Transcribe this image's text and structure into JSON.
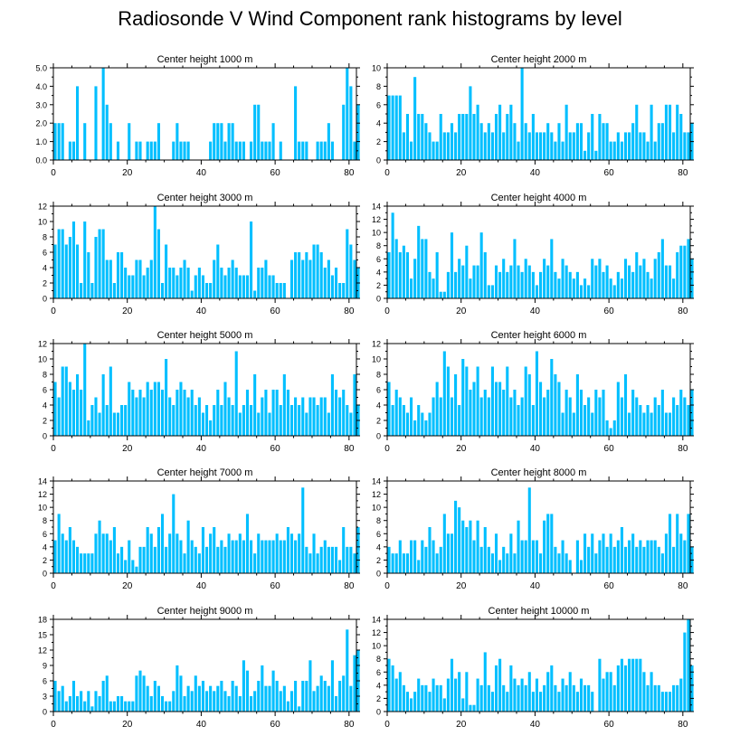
{
  "page_title": "Radiosonde V Wind Component rank histograms by level",
  "colors": {
    "bar": "#00bfff",
    "axis": "#000000",
    "background": "#ffffff"
  },
  "chart_data": [
    {
      "type": "bar",
      "title": "Center height 1000 m",
      "xlim": [
        0,
        82
      ],
      "xticks": [
        0,
        20,
        40,
        60,
        80
      ],
      "ylim": [
        0,
        5
      ],
      "yticks": [
        0,
        1,
        2,
        3,
        4,
        5
      ],
      "ytick_labels": [
        "0.0",
        "1.0",
        "2.0",
        "3.0",
        "4.0",
        "5.0"
      ],
      "values": [
        2,
        2,
        2,
        0,
        1,
        1,
        4,
        0,
        2,
        0,
        0,
        4,
        0,
        5,
        3,
        2,
        0,
        1,
        0,
        0,
        2,
        0,
        1,
        1,
        0,
        1,
        1,
        1,
        2,
        0,
        0,
        0,
        1,
        2,
        1,
        1,
        1,
        0,
        0,
        0,
        0,
        0,
        1,
        2,
        2,
        2,
        1,
        2,
        2,
        1,
        1,
        1,
        0,
        1,
        3,
        3,
        1,
        1,
        1,
        2,
        0,
        1,
        0,
        0,
        0,
        4,
        1,
        1,
        1,
        0,
        0,
        1,
        1,
        1,
        2,
        1,
        0,
        0,
        3,
        5,
        4,
        1,
        3
      ]
    },
    {
      "type": "bar",
      "title": "Center height 2000 m",
      "xlim": [
        0,
        82
      ],
      "xticks": [
        0,
        20,
        40,
        60,
        80
      ],
      "ylim": [
        0,
        10
      ],
      "yticks": [
        0,
        2,
        4,
        6,
        8,
        10
      ],
      "ytick_labels": [
        "0",
        "2",
        "4",
        "6",
        "8",
        "10"
      ],
      "values": [
        7,
        7,
        7,
        7,
        3,
        5,
        2,
        9,
        5,
        5,
        4,
        3,
        2,
        2,
        5,
        3,
        3,
        4,
        3,
        5,
        5,
        5,
        8,
        5,
        6,
        4,
        3,
        4,
        3,
        5,
        6,
        3,
        5,
        6,
        4,
        2,
        10,
        4,
        3,
        5,
        3,
        3,
        3,
        4,
        3,
        2,
        4,
        2,
        6,
        3,
        3,
        4,
        4,
        1,
        3,
        5,
        1,
        5,
        4,
        4,
        2,
        2,
        3,
        2,
        3,
        3,
        4,
        6,
        3,
        3,
        2,
        6,
        2,
        4,
        4,
        6,
        6,
        3,
        6,
        5,
        3,
        3,
        4
      ]
    },
    {
      "type": "bar",
      "title": "Center height 3000 m",
      "xlim": [
        0,
        82
      ],
      "xticks": [
        0,
        20,
        40,
        60,
        80
      ],
      "ylim": [
        0,
        12
      ],
      "yticks": [
        0,
        2,
        4,
        6,
        8,
        10,
        12
      ],
      "ytick_labels": [
        "0",
        "2",
        "4",
        "6",
        "8",
        "10",
        "12"
      ],
      "values": [
        7,
        9,
        9,
        7,
        8,
        10,
        7,
        2,
        10,
        6,
        2,
        8,
        9,
        9,
        5,
        5,
        2,
        6,
        6,
        4,
        3,
        3,
        5,
        5,
        3,
        4,
        5,
        12,
        9,
        2,
        7,
        4,
        4,
        3,
        4,
        5,
        4,
        1,
        3,
        4,
        3,
        2,
        2,
        5,
        7,
        4,
        3,
        4,
        5,
        4,
        3,
        3,
        3,
        10,
        1,
        4,
        4,
        5,
        3,
        3,
        2,
        2,
        2,
        0,
        5,
        6,
        6,
        5,
        6,
        5,
        7,
        7,
        6,
        4,
        5,
        3,
        4,
        2,
        2,
        9,
        7,
        5,
        4
      ]
    },
    {
      "type": "bar",
      "title": "Center height 4000 m",
      "xlim": [
        0,
        82
      ],
      "xticks": [
        0,
        20,
        40,
        60,
        80
      ],
      "ylim": [
        0,
        14
      ],
      "yticks": [
        0,
        2,
        4,
        6,
        8,
        10,
        12,
        14
      ],
      "ytick_labels": [
        "0",
        "2",
        "4",
        "6",
        "8",
        "10",
        "12",
        "14"
      ],
      "values": [
        7,
        13,
        9,
        7,
        8,
        7,
        3,
        6,
        11,
        9,
        9,
        4,
        3,
        7,
        1,
        1,
        4,
        10,
        4,
        6,
        5,
        8,
        3,
        5,
        5,
        10,
        7,
        2,
        2,
        5,
        4,
        6,
        4,
        5,
        9,
        5,
        4,
        6,
        5,
        4,
        2,
        4,
        6,
        5,
        9,
        4,
        3,
        6,
        5,
        4,
        3,
        4,
        2,
        3,
        2,
        6,
        5,
        6,
        4,
        5,
        3,
        2,
        4,
        3,
        6,
        5,
        4,
        7,
        5,
        6,
        4,
        3,
        6,
        7,
        9,
        5,
        5,
        3,
        7,
        8,
        8,
        9,
        6
      ]
    },
    {
      "type": "bar",
      "title": "Center height 5000 m",
      "xlim": [
        0,
        82
      ],
      "xticks": [
        0,
        20,
        40,
        60,
        80
      ],
      "ylim": [
        0,
        12
      ],
      "yticks": [
        0,
        2,
        4,
        6,
        8,
        10,
        12
      ],
      "ytick_labels": [
        "0",
        "2",
        "4",
        "6",
        "8",
        "10",
        "12"
      ],
      "values": [
        7,
        5,
        9,
        9,
        7,
        6,
        8,
        6,
        12,
        2,
        4,
        5,
        3,
        8,
        4,
        9,
        3,
        3,
        4,
        4,
        7,
        6,
        5,
        6,
        5,
        7,
        6,
        7,
        7,
        6,
        10,
        5,
        4,
        6,
        7,
        6,
        5,
        6,
        4,
        5,
        3,
        4,
        2,
        4,
        6,
        4,
        7,
        5,
        4,
        11,
        3,
        4,
        6,
        4,
        8,
        3,
        5,
        6,
        3,
        6,
        6,
        4,
        8,
        6,
        4,
        5,
        4,
        5,
        3,
        5,
        5,
        4,
        5,
        5,
        3,
        8,
        6,
        5,
        6,
        4,
        3,
        8,
        4
      ]
    },
    {
      "type": "bar",
      "title": "Center height 6000 m",
      "xlim": [
        0,
        82
      ],
      "xticks": [
        0,
        20,
        40,
        60,
        80
      ],
      "ylim": [
        0,
        12
      ],
      "yticks": [
        0,
        2,
        4,
        6,
        8,
        10,
        12
      ],
      "ytick_labels": [
        "0",
        "2",
        "4",
        "6",
        "8",
        "10",
        "12"
      ],
      "values": [
        7,
        4,
        6,
        5,
        4,
        3,
        5,
        2,
        4,
        3,
        2,
        3,
        5,
        7,
        5,
        11,
        9,
        5,
        8,
        4,
        10,
        9,
        6,
        7,
        9,
        5,
        6,
        5,
        9,
        7,
        7,
        6,
        9,
        5,
        6,
        4,
        5,
        9,
        8,
        4,
        11,
        7,
        5,
        6,
        10,
        8,
        7,
        3,
        6,
        5,
        3,
        8,
        6,
        4,
        5,
        3,
        6,
        5,
        6,
        2,
        1,
        2,
        7,
        5,
        8,
        3,
        6,
        5,
        4,
        3,
        4,
        3,
        5,
        4,
        6,
        3,
        3,
        5,
        4,
        6,
        5,
        4,
        6
      ]
    },
    {
      "type": "bar",
      "title": "Center height 7000 m",
      "xlim": [
        0,
        82
      ],
      "xticks": [
        0,
        20,
        40,
        60,
        80
      ],
      "ylim": [
        0,
        14
      ],
      "yticks": [
        0,
        2,
        4,
        6,
        8,
        10,
        12,
        14
      ],
      "ytick_labels": [
        "0",
        "2",
        "4",
        "6",
        "8",
        "10",
        "12",
        "14"
      ],
      "values": [
        5,
        9,
        6,
        5,
        7,
        5,
        4,
        3,
        3,
        3,
        3,
        6,
        8,
        6,
        6,
        5,
        7,
        3,
        4,
        2,
        5,
        2,
        1,
        4,
        4,
        7,
        6,
        4,
        7,
        9,
        4,
        6,
        12,
        6,
        5,
        3,
        8,
        5,
        4,
        3,
        7,
        4,
        6,
        7,
        4,
        5,
        4,
        6,
        5,
        5,
        6,
        5,
        9,
        5,
        3,
        6,
        5,
        5,
        5,
        5,
        6,
        5,
        5,
        7,
        6,
        5,
        6,
        13,
        4,
        3,
        6,
        3,
        4,
        5,
        4,
        4,
        4,
        2,
        7,
        4,
        4,
        3,
        7
      ]
    },
    {
      "type": "bar",
      "title": "Center height 8000 m",
      "xlim": [
        0,
        82
      ],
      "xticks": [
        0,
        20,
        40,
        60,
        80
      ],
      "ylim": [
        0,
        14
      ],
      "yticks": [
        0,
        2,
        4,
        6,
        8,
        10,
        12,
        14
      ],
      "ytick_labels": [
        "0",
        "2",
        "4",
        "6",
        "8",
        "10",
        "12",
        "14"
      ],
      "values": [
        4,
        3,
        3,
        5,
        3,
        3,
        5,
        5,
        2,
        5,
        4,
        7,
        5,
        3,
        4,
        9,
        6,
        6,
        11,
        10,
        8,
        7,
        8,
        5,
        8,
        4,
        7,
        4,
        3,
        6,
        2,
        4,
        3,
        6,
        3,
        8,
        5,
        5,
        13,
        5,
        5,
        3,
        8,
        9,
        9,
        4,
        3,
        5,
        3,
        2,
        0,
        5,
        2,
        6,
        4,
        6,
        3,
        5,
        6,
        4,
        6,
        4,
        5,
        7,
        4,
        5,
        6,
        4,
        5,
        4,
        5,
        5,
        5,
        4,
        3,
        6,
        9,
        4,
        9,
        6,
        5,
        9,
        4
      ]
    },
    {
      "type": "bar",
      "title": "Center height 9000 m",
      "xlim": [
        0,
        82
      ],
      "xticks": [
        0,
        20,
        40,
        60,
        80
      ],
      "ylim": [
        0,
        18
      ],
      "yticks": [
        0,
        3,
        6,
        9,
        12,
        15,
        18
      ],
      "ytick_labels": [
        "0",
        "3",
        "6",
        "9",
        "12",
        "15",
        "18"
      ],
      "values": [
        6,
        4,
        5,
        2,
        3,
        6,
        3,
        4,
        2,
        4,
        1,
        4,
        3,
        6,
        7,
        2,
        2,
        3,
        3,
        2,
        2,
        2,
        7,
        8,
        7,
        5,
        3,
        6,
        5,
        3,
        2,
        2,
        4,
        9,
        7,
        3,
        5,
        4,
        7,
        5,
        6,
        4,
        5,
        4,
        5,
        6,
        4,
        3,
        6,
        5,
        3,
        10,
        8,
        3,
        4,
        6,
        9,
        5,
        5,
        8,
        6,
        4,
        5,
        2,
        4,
        6,
        1,
        6,
        6,
        10,
        4,
        5,
        7,
        6,
        5,
        10,
        3,
        6,
        7,
        16,
        5,
        11,
        12
      ]
    },
    {
      "type": "bar",
      "title": "Center height 10000 m",
      "xlim": [
        0,
        82
      ],
      "xticks": [
        0,
        20,
        40,
        60,
        80
      ],
      "ylim": [
        0,
        14
      ],
      "yticks": [
        0,
        2,
        4,
        6,
        8,
        10,
        12,
        14
      ],
      "ytick_labels": [
        "0",
        "2",
        "4",
        "6",
        "8",
        "10",
        "12",
        "14"
      ],
      "values": [
        8,
        7,
        5,
        6,
        4,
        3,
        2,
        3,
        5,
        4,
        4,
        3,
        5,
        4,
        4,
        2,
        5,
        8,
        5,
        6,
        2,
        6,
        1,
        1,
        5,
        4,
        9,
        4,
        3,
        7,
        8,
        4,
        3,
        7,
        5,
        4,
        5,
        4,
        6,
        3,
        5,
        3,
        4,
        6,
        7,
        4,
        3,
        5,
        4,
        6,
        4,
        3,
        5,
        4,
        4,
        3,
        0,
        8,
        5,
        6,
        6,
        4,
        7,
        8,
        7,
        8,
        8,
        8,
        8,
        6,
        4,
        6,
        4,
        4,
        3,
        3,
        3,
        4,
        4,
        5,
        12,
        14,
        7
      ]
    }
  ]
}
